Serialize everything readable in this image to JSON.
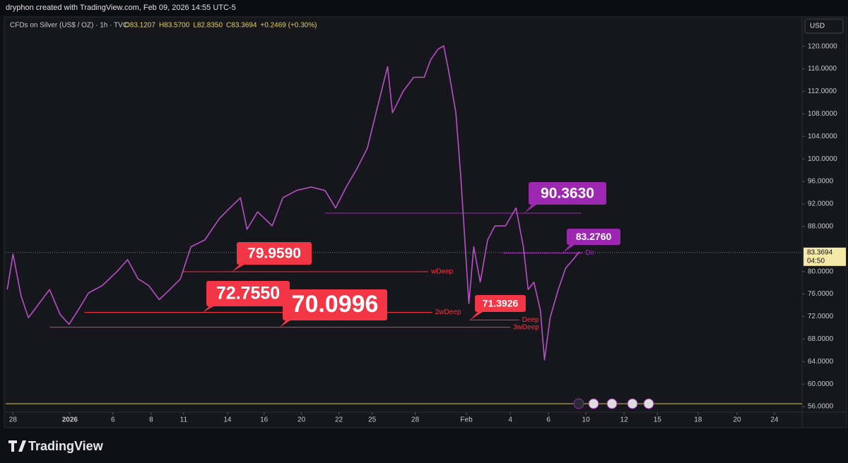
{
  "header": "dryphon created with TradingView.com, Feb 09, 2026 14:55 UTC-5",
  "legend": {
    "symbol": "CFDs on Silver (US$ / OZ) · 1h · TVC",
    "ohlc": [
      "O83.1207",
      "H83.5700",
      "L82.8350",
      "C83.3694",
      "+0.2469 (+0.30%)"
    ]
  },
  "currency": "USD",
  "footer": "TradingView",
  "chart_data": {
    "type": "line",
    "color": "#b84fc4",
    "x": [
      2,
      9,
      19,
      28,
      41,
      54,
      67,
      78,
      89,
      102,
      119,
      137,
      150,
      163,
      176,
      189,
      202,
      215,
      228,
      245,
      263,
      276,
      289,
      297,
      310,
      328,
      341,
      358,
      376,
      393,
      406,
      419,
      432,
      445,
      458,
      470,
      476,
      489,
      502,
      515,
      523,
      532,
      539,
      545,
      554,
      560,
      565,
      570,
      576,
      584,
      593,
      602,
      615,
      628,
      637,
      643,
      650,
      658,
      663,
      670,
      680,
      689,
      697,
      706
    ],
    "series": [
      {
        "values": [
          76.8,
          83.1,
          75.6,
          71.8,
          74.3,
          76.8,
          72.4,
          70.6,
          73.1,
          76.2,
          77.5,
          80.0,
          82.1,
          78.7,
          77.5,
          75.0,
          76.8,
          78.7,
          84.4,
          85.6,
          89.4,
          91.3,
          93.1,
          87.5,
          90.6,
          88.1,
          93.1,
          94.4,
          95.0,
          94.4,
          91.3,
          95.0,
          98.2,
          101.9,
          109.5,
          116.4,
          108.2,
          112.0,
          114.5,
          114.5,
          117.6,
          119.5,
          120.1,
          115.7,
          108.2,
          96.9,
          85.6,
          74.3,
          84.4,
          78.1,
          85.6,
          88.1,
          88.1,
          91.3,
          84.4,
          76.8,
          78.1,
          73.1,
          64.3,
          71.8,
          76.8,
          80.6,
          81.9,
          83.5
        ]
      }
    ],
    "xlim": [
      0,
      980
    ],
    "xticks": [
      {
        "value": 9,
        "label": "28"
      },
      {
        "value": 79,
        "label": "2026"
      },
      {
        "value": 132,
        "label": "6"
      },
      {
        "value": 179,
        "label": "8"
      },
      {
        "value": 219,
        "label": "11"
      },
      {
        "value": 273,
        "label": "14"
      },
      {
        "value": 318,
        "label": "16"
      },
      {
        "value": 364,
        "label": "20"
      },
      {
        "value": 410,
        "label": "22"
      },
      {
        "value": 451,
        "label": "25"
      },
      {
        "value": 504,
        "label": "28"
      },
      {
        "value": 567,
        "label": "Feb"
      },
      {
        "value": 621,
        "label": "4"
      },
      {
        "value": 668,
        "label": "6"
      },
      {
        "value": 714,
        "label": "10"
      },
      {
        "value": 761,
        "label": "12"
      },
      {
        "value": 802,
        "label": "15"
      },
      {
        "value": 852,
        "label": "18"
      },
      {
        "value": 900,
        "label": "20"
      },
      {
        "value": 946,
        "label": "24"
      }
    ],
    "ylim": [
      53,
      125.1
    ],
    "yticks": [
      {
        "value": 56,
        "label": "56.0000"
      },
      {
        "value": 60,
        "label": "60.0000"
      },
      {
        "value": 64,
        "label": "64.0000"
      },
      {
        "value": 68,
        "label": "68.0000"
      },
      {
        "value": 72,
        "label": "72.0000"
      },
      {
        "value": 76,
        "label": "76.0000"
      },
      {
        "value": 80,
        "label": "80.0000"
      },
      {
        "value": 88,
        "label": "88.0000"
      },
      {
        "value": 92,
        "label": "92.0000"
      },
      {
        "value": 96,
        "label": "96.0000"
      },
      {
        "value": 100,
        "label": "100.0000"
      },
      {
        "value": 104,
        "label": "104.0000"
      },
      {
        "value": 108,
        "label": "108.0000"
      },
      {
        "value": 112,
        "label": "112.0000"
      },
      {
        "value": 116,
        "label": "116.0000"
      },
      {
        "value": 120,
        "label": "120.0000"
      }
    ],
    "last_price": {
      "value": 83.3694,
      "label": "83.3694",
      "countdown": "04:50"
    },
    "levels": [
      {
        "value": 90.363,
        "label": "90.3630",
        "x": [
          393,
          708
        ],
        "color": "#9c27b0"
      },
      {
        "value": 83.276,
        "label": "83.2760",
        "name": "Dir",
        "x": [
          612,
          710
        ],
        "color": "#9c27b0"
      },
      {
        "value": 79.959,
        "label": "79.9590",
        "name": "wDeep",
        "x": [
          217,
          520
        ],
        "color": "#f23645"
      },
      {
        "value": 72.755,
        "label": "72.7550",
        "name": "2wDeep",
        "x": [
          97,
          525
        ],
        "color": "#f23645"
      },
      {
        "value": 70.0996,
        "label": "70.0996",
        "name": "3wDeep",
        "x": [
          54,
          621
        ],
        "color": "#f23645"
      },
      {
        "value": 71.3926,
        "label": "71.3926",
        "name": "Deep",
        "x": [
          571,
          632
        ],
        "color": "#f23645"
      }
    ]
  }
}
